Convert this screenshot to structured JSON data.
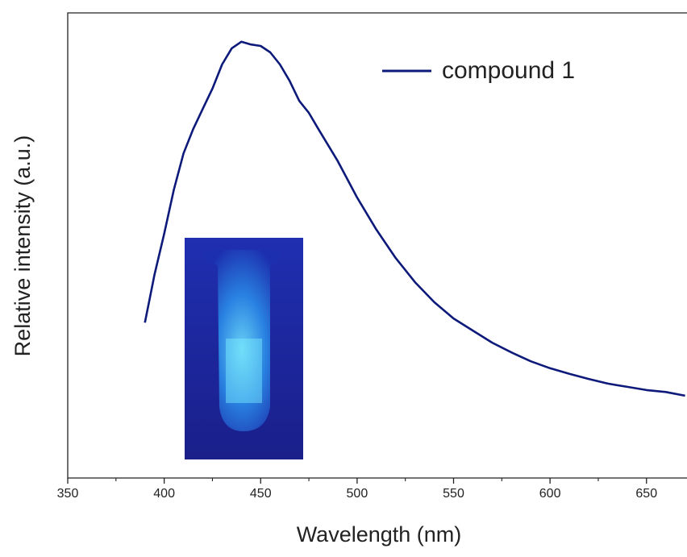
{
  "chart_data": {
    "type": "line",
    "xlabel": "Wavelength (nm)",
    "ylabel": "Relative intensity (a.u.)",
    "xlim": [
      350,
      671
    ],
    "ylim": [
      0,
      100
    ],
    "xticks": [
      350,
      400,
      450,
      500,
      550,
      600,
      650
    ],
    "xminor_ticks": [
      375,
      425,
      475,
      525,
      575,
      625
    ],
    "legend": "upper right",
    "series": [
      {
        "name": "compound 1",
        "color": "#0d1a7a",
        "x": [
          390,
          395,
          400,
          405,
          410,
          415,
          420,
          425,
          430,
          435,
          440,
          445,
          450,
          455,
          460,
          465,
          470,
          475,
          480,
          490,
          500,
          510,
          520,
          530,
          540,
          550,
          560,
          570,
          580,
          590,
          600,
          610,
          620,
          630,
          640,
          650,
          660,
          670
        ],
        "values": [
          33.4,
          43.8,
          52.5,
          62,
          69.8,
          75,
          79.4,
          83.7,
          88.9,
          92.4,
          93.8,
          93.2,
          92.9,
          91.5,
          88.9,
          85.4,
          81.1,
          78.5,
          75,
          68.1,
          60.3,
          53.4,
          47.3,
          42.1,
          37.8,
          34.3,
          31.7,
          29.1,
          27,
          25.1,
          23.6,
          22.4,
          21.3,
          20.3,
          19.6,
          18.9,
          18.5,
          17.7
        ]
      }
    ]
  }
}
